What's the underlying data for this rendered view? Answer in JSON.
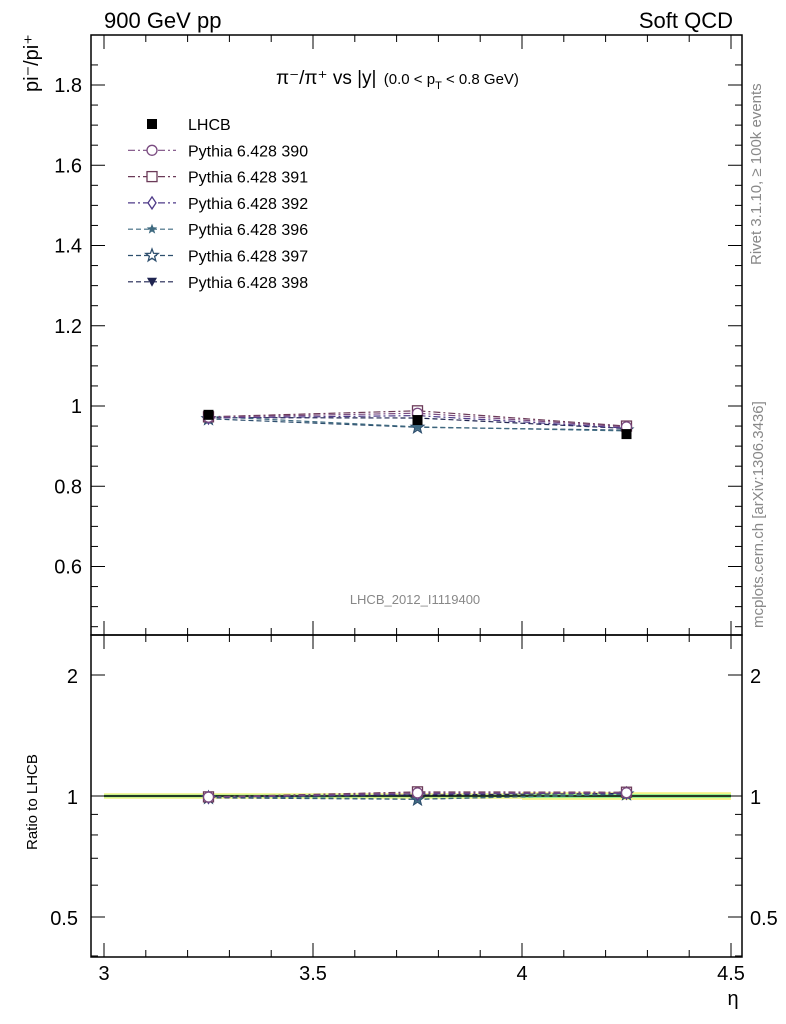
{
  "header": {
    "left": "900 GeV pp",
    "right": "Soft QCD"
  },
  "plot_title": {
    "main": "π⁻/π⁺ vs |y|",
    "cut": "(0.0 < p",
    "cut_sub": "T",
    "cut_end": " < 0.8 GeV)"
  },
  "watermark": "LHCB_2012_I1119400",
  "side_text": {
    "rivet": "Rivet 3.1.10, ≥ 100k events",
    "mcplots": "mcplots.cern.ch [arXiv:1306.3436]"
  },
  "colors": {
    "LHCB": "#000000",
    "390": "#7a4b80",
    "391": "#6b3a58",
    "392": "#4e3a88",
    "396": "#3f6a80",
    "397": "#2e4f6e",
    "398": "#1f2450",
    "band_green": "#8ef08e",
    "band_yellow": "#f4f488"
  },
  "chart_data": [
    {
      "type": "line",
      "panel": "main",
      "ylabel": "pi⁻/pi⁺",
      "xlim": [
        3.0,
        4.5
      ],
      "ylim": [
        0.45,
        1.93
      ],
      "y_ticks": [
        "0.6",
        "0.8",
        "1",
        "1.2",
        "1.4",
        "1.6",
        "1.8"
      ],
      "x": [
        3.25,
        3.75,
        4.25
      ],
      "series": [
        {
          "name": "LHCB",
          "marker": "square-filled",
          "values": [
            0.978,
            0.965,
            0.93
          ],
          "errors": [
            0.008,
            0.008,
            0.01
          ]
        },
        {
          "name": "Pythia 6.428 390",
          "marker": "circle-open",
          "values": [
            0.972,
            0.982,
            0.948
          ]
        },
        {
          "name": "Pythia 6.428 391",
          "marker": "square-open",
          "values": [
            0.973,
            0.988,
            0.95
          ]
        },
        {
          "name": "Pythia 6.428 392",
          "marker": "diamond-open",
          "values": [
            0.97,
            0.976,
            0.945
          ]
        },
        {
          "name": "Pythia 6.428 396",
          "marker": "star-filled",
          "values": [
            0.974,
            0.948,
            0.938
          ]
        },
        {
          "name": "Pythia 6.428 397",
          "marker": "star-open",
          "values": [
            0.968,
            0.947,
            0.94
          ]
        },
        {
          "name": "Pythia 6.428 398",
          "marker": "triangle-down-filled",
          "values": [
            0.971,
            0.97,
            0.944
          ]
        }
      ]
    },
    {
      "type": "line",
      "panel": "ratio",
      "ylabel": "Ratio to LHCB",
      "xlabel": "η",
      "xlim": [
        3.0,
        4.5
      ],
      "ylim": [
        0.35,
        2.4
      ],
      "log_y": true,
      "x_ticks": [
        "3",
        "3.5",
        "4",
        "4.5"
      ],
      "y_ticks": [
        "0.5",
        "1",
        "2"
      ],
      "x": [
        3.25,
        3.75,
        4.25
      ],
      "band": {
        "x_edges": [
          3.0,
          3.5,
          4.0,
          4.5
        ],
        "green_half_width": [
          0.008,
          0.008,
          0.011
        ],
        "yellow_half_width": [
          0.016,
          0.016,
          0.022
        ]
      },
      "series": [
        {
          "name": "Pythia 6.428 390",
          "values": [
            0.994,
            1.018,
            1.019
          ]
        },
        {
          "name": "Pythia 6.428 391",
          "values": [
            0.995,
            1.024,
            1.022
          ]
        },
        {
          "name": "Pythia 6.428 392",
          "values": [
            0.992,
            1.011,
            1.016
          ]
        },
        {
          "name": "Pythia 6.428 396",
          "values": [
            0.996,
            0.982,
            1.009
          ]
        },
        {
          "name": "Pythia 6.428 397",
          "values": [
            0.99,
            0.981,
            1.011
          ]
        },
        {
          "name": "Pythia 6.428 398",
          "values": [
            0.993,
            1.005,
            1.015
          ]
        }
      ]
    }
  ]
}
